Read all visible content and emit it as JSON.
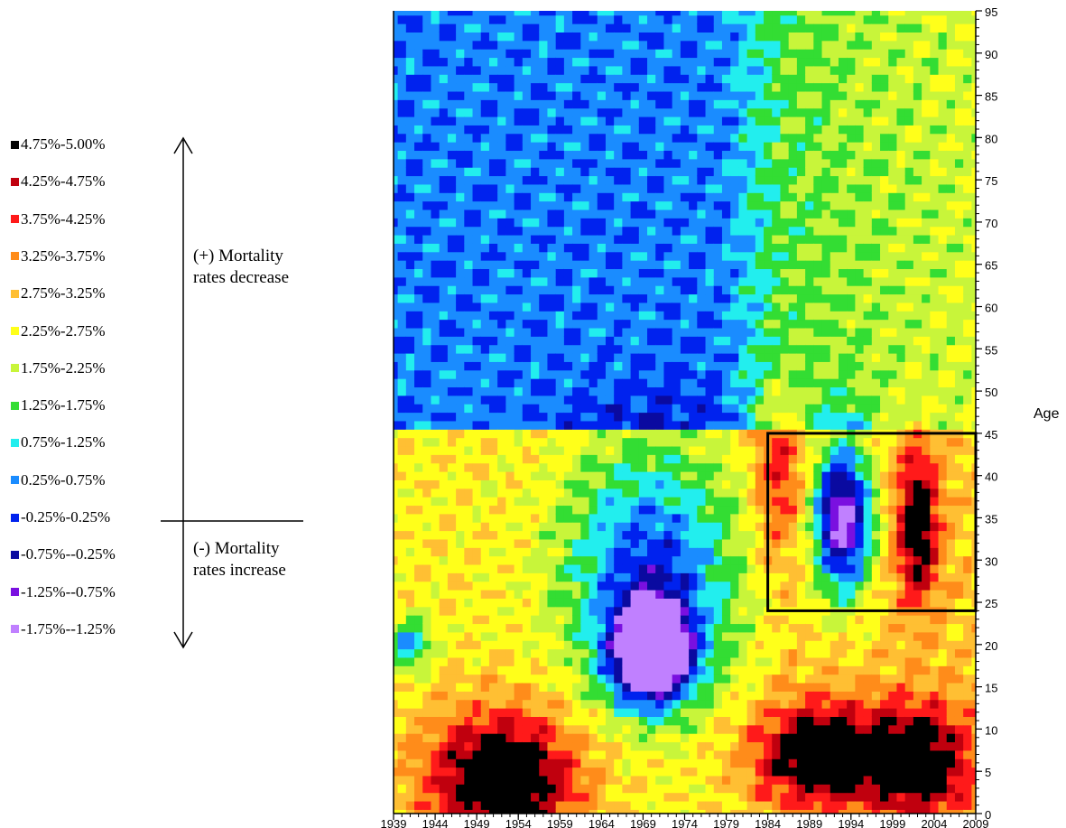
{
  "chart_data": {
    "type": "heatmap",
    "title": "",
    "xlabel": "",
    "ylabel": "Age",
    "x_ticks": [
      "1939",
      "1944",
      "1949",
      "1954",
      "1959",
      "1964",
      "1969",
      "1974",
      "1979",
      "1984",
      "1989",
      "1994",
      "1999",
      "2004",
      "2009"
    ],
    "y_ticks": [
      "0",
      "5",
      "10",
      "15",
      "20",
      "25",
      "30",
      "35",
      "40",
      "45",
      "50",
      "55",
      "60",
      "65",
      "70",
      "75",
      "80",
      "85",
      "90",
      "95"
    ],
    "xlim": [
      1939,
      2009
    ],
    "ylim": [
      0,
      95
    ],
    "legend": [
      {
        "label": "4.75%-5.00%",
        "color": "#000000"
      },
      {
        "label": "4.25%-4.75%",
        "color": "#c0000e"
      },
      {
        "label": "3.75%-4.25%",
        "color": "#ff1a1a"
      },
      {
        "label": "3.25%-3.75%",
        "color": "#ff8c1a"
      },
      {
        "label": "2.75%-3.25%",
        "color": "#ffbf33"
      },
      {
        "label": "2.25%-2.75%",
        "color": "#ffff1a"
      },
      {
        "label": "1.75%-2.25%",
        "color": "#c8f53a"
      },
      {
        "label": "1.25%-1.75%",
        "color": "#33dd33"
      },
      {
        "label": "0.75%-1.25%",
        "color": "#22eeee"
      },
      {
        "label": "0.25%-0.75%",
        "color": "#1a8cff"
      },
      {
        "label": "-0.25%-0.25%",
        "color": "#0022ee"
      },
      {
        "label": "-0.75%--0.25%",
        "color": "#0a0aa0"
      },
      {
        "label": "-1.25%--0.75%",
        "color": "#7a10e0"
      },
      {
        "label": "-1.75%--1.25%",
        "color": "#c080ff"
      }
    ],
    "highlight_box": {
      "x_range": [
        1984,
        2009
      ],
      "y_range": [
        24,
        45
      ]
    },
    "annotations": {
      "up_line1": "(+) Mortality",
      "up_line2": "rates decrease",
      "down_line1": "(-) Mortality",
      "down_line2": "rates increase"
    }
  }
}
